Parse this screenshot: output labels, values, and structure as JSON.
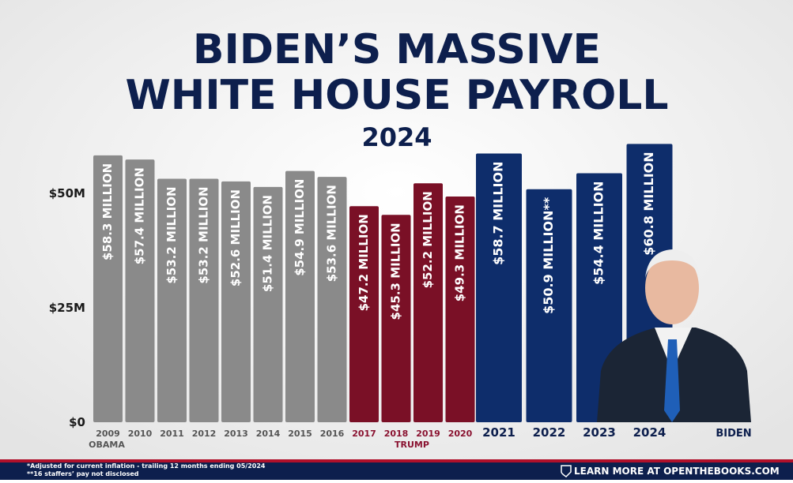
{
  "chart_data": {
    "type": "bar",
    "title": "BIDEN’S MASSIVE",
    "title_line2": "WHITE HOUSE PAYROLL",
    "subtitle": "2024",
    "categories": [
      "2009",
      "2010",
      "2011",
      "2012",
      "2013",
      "2014",
      "2015",
      "2016",
      "2017",
      "2018",
      "2019",
      "2020",
      "2021",
      "2022",
      "2023",
      "2024"
    ],
    "values": [
      58.3,
      57.4,
      53.2,
      53.2,
      52.6,
      51.4,
      54.9,
      53.6,
      47.2,
      45.3,
      52.2,
      49.3,
      58.7,
      50.9,
      54.4,
      60.8
    ],
    "value_labels": [
      "$58.3 MILLION",
      "$57.4 MILLION",
      "$53.2 MILLION",
      "$53.2 MILLION",
      "$52.6 MILLION",
      "$51.4 MILLION",
      "$54.9 MILLION",
      "$53.6 MILLION",
      "$47.2 MILLION",
      "$45.3 MILLION",
      "$52.2 MILLION",
      "$49.3 MILLION",
      "$58.7 MILLION",
      "$50.9 MILLION**",
      "$54.4 MILLION",
      "$60.8 MILLION"
    ],
    "colors": [
      "#8a8a8a",
      "#8a8a8a",
      "#8a8a8a",
      "#8a8a8a",
      "#8a8a8a",
      "#8a8a8a",
      "#8a8a8a",
      "#8a8a8a",
      "#7a1026",
      "#7a1026",
      "#7a1026",
      "#7a1026",
      "#0e2d6b",
      "#0e2d6b",
      "#0e2d6b",
      "#0e2d6b"
    ],
    "ylim": [
      0,
      65
    ],
    "yticks": [
      {
        "value": 0,
        "label": "$0"
      },
      {
        "value": 25,
        "label": "$25M"
      },
      {
        "value": 50,
        "label": "$50M"
      }
    ],
    "groups": [
      "OBAMA",
      "TRUMP",
      "BIDEN"
    ],
    "footnotes": [
      "*Adjusted for current inflation - trailing 12 months ending 05/2024",
      "**16 staffers’ pay not disclosed"
    ],
    "link": "LEARN MORE AT OPENTHEBOOKS.COM"
  }
}
